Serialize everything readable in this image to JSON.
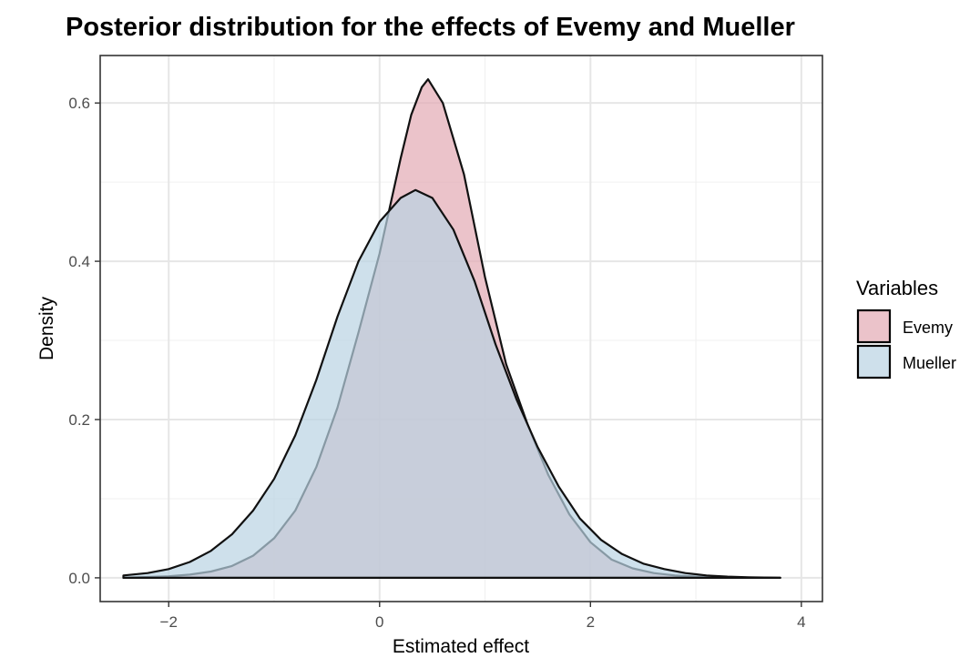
{
  "chart_data": {
    "type": "area",
    "title": "Posterior distribution for the effects of Evemy and Mueller",
    "xlabel": "Estimated effect",
    "ylabel": "Density",
    "xlim": [
      -2.65,
      4.2
    ],
    "ylim": [
      -0.03,
      0.66
    ],
    "x_ticks": [
      -2,
      0,
      2,
      4
    ],
    "x_tick_labels": [
      "−2",
      "0",
      "2",
      "4"
    ],
    "y_ticks": [
      0.0,
      0.2,
      0.4,
      0.6
    ],
    "y_tick_labels": [
      "0.0",
      "0.2",
      "0.4",
      "0.6"
    ],
    "grid": true,
    "legend_title": "Variables",
    "legend_position": "right",
    "series": [
      {
        "name": "Evemy",
        "fill_color": "#e2a9b3",
        "x": [
          -2.43,
          -2.2,
          -2.0,
          -1.8,
          -1.6,
          -1.4,
          -1.2,
          -1.0,
          -0.8,
          -0.6,
          -0.4,
          -0.2,
          0.0,
          0.2,
          0.3,
          0.4,
          0.46,
          0.6,
          0.8,
          1.0,
          1.2,
          1.4,
          1.6,
          1.8,
          2.0,
          2.2,
          2.4,
          2.6,
          2.8,
          3.0,
          3.2,
          3.4,
          3.6,
          3.8
        ],
        "values": [
          0.0,
          0.001,
          0.002,
          0.004,
          0.008,
          0.015,
          0.028,
          0.05,
          0.085,
          0.14,
          0.215,
          0.31,
          0.41,
          0.53,
          0.585,
          0.62,
          0.63,
          0.6,
          0.51,
          0.38,
          0.27,
          0.195,
          0.13,
          0.08,
          0.045,
          0.023,
          0.012,
          0.006,
          0.003,
          0.0015,
          0.0008,
          0.0004,
          0.0002,
          0.0
        ]
      },
      {
        "name": "Mueller",
        "fill_color": "#b9d3e3",
        "x": [
          -2.43,
          -2.2,
          -2.0,
          -1.8,
          -1.6,
          -1.4,
          -1.2,
          -1.0,
          -0.8,
          -0.6,
          -0.4,
          -0.2,
          0.0,
          0.2,
          0.34,
          0.5,
          0.7,
          0.9,
          1.1,
          1.3,
          1.5,
          1.7,
          1.9,
          2.1,
          2.3,
          2.5,
          2.7,
          2.9,
          3.1,
          3.3,
          3.5,
          3.8
        ],
        "values": [
          0.003,
          0.006,
          0.011,
          0.02,
          0.034,
          0.055,
          0.085,
          0.125,
          0.18,
          0.25,
          0.33,
          0.4,
          0.45,
          0.48,
          0.49,
          0.48,
          0.44,
          0.375,
          0.295,
          0.225,
          0.165,
          0.115,
          0.075,
          0.048,
          0.03,
          0.018,
          0.011,
          0.006,
          0.003,
          0.0015,
          0.0007,
          0.0
        ]
      }
    ]
  }
}
